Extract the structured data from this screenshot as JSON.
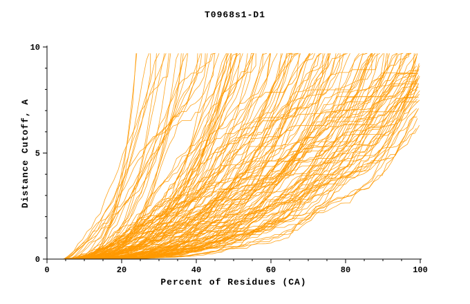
{
  "figure": {
    "background": "#ffffff",
    "text_color": "#000000",
    "axis_color": "#000000"
  },
  "chart_data": {
    "type": "line",
    "title": "T0968s1-D1",
    "xlabel": "Percent of Residues (CA)",
    "ylabel": "Distance Cutoff, A",
    "xlim": [
      0,
      100
    ],
    "ylim": [
      0,
      10
    ],
    "x_ticks": [
      0,
      20,
      40,
      60,
      80,
      100
    ],
    "y_ticks": [
      0,
      5,
      10
    ],
    "minor_x_step": 5,
    "minor_y_step": 1,
    "grid": false,
    "legend": false,
    "series_color": "#ff9900",
    "num_series": 150,
    "series_description": "Ensemble of ~150 monotonically increasing model-accuracy curves (GDT-style): each curve starts near 4-10% of residues at distance cutoff 0 and rises to a cap near 9.7 A, terminating between roughly 22% and 100% of residues; curves that reach 100% end at cutoffs between about 6.5 and 9.7 A.",
    "generation": {
      "seed": 42,
      "x_start_range": [
        4,
        10
      ],
      "x_end_range": [
        22,
        115
      ],
      "x_end_skew": 0.75,
      "y_cap": 9.7,
      "shape_exponent_range": [
        1.2,
        3.6
      ],
      "x_step": 1.2,
      "wobble_amp": 0.1,
      "noise_amp": 0.3
    }
  }
}
